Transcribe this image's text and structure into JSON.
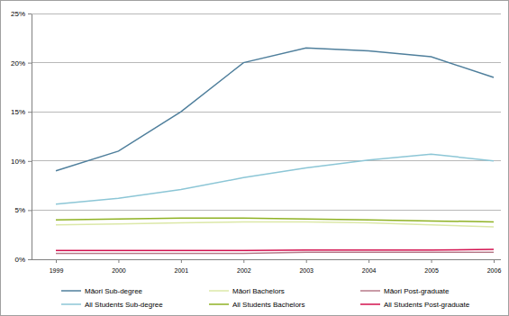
{
  "chart_data": {
    "type": "line",
    "categories": [
      "1999",
      "2000",
      "2001",
      "2002",
      "2003",
      "2004",
      "2005",
      "2006"
    ],
    "series": [
      {
        "name": "Māori Sub-degree",
        "color": "#4f7f9c",
        "values": [
          9.0,
          11.0,
          15.0,
          20.0,
          21.5,
          21.2,
          20.6,
          18.5
        ]
      },
      {
        "name": "Māori Bachelors",
        "color": "#dce8a8",
        "values": [
          3.5,
          3.6,
          3.7,
          3.8,
          3.8,
          3.7,
          3.5,
          3.3
        ]
      },
      {
        "name": "Māori Post-graduate",
        "color": "#b77a8a",
        "values": [
          0.6,
          0.6,
          0.6,
          0.6,
          0.7,
          0.7,
          0.7,
          0.7
        ]
      },
      {
        "name": "All Students Sub-degree",
        "color": "#8cc6d6",
        "values": [
          5.6,
          6.2,
          7.1,
          8.3,
          9.3,
          10.1,
          10.7,
          10.0
        ]
      },
      {
        "name": "All Students Bachelors",
        "color": "#8fb224",
        "values": [
          4.0,
          4.1,
          4.2,
          4.2,
          4.1,
          4.0,
          3.9,
          3.8
        ]
      },
      {
        "name": "All Students Post-graduate",
        "color": "#d3104e",
        "values": [
          0.9,
          0.9,
          0.9,
          0.9,
          0.95,
          0.95,
          0.95,
          1.0
        ]
      }
    ],
    "ylim": [
      0,
      25
    ],
    "yticks": [
      {
        "value": 0,
        "label": "0%"
      },
      {
        "value": 5,
        "label": "5%"
      },
      {
        "value": 10,
        "label": "10%"
      },
      {
        "value": 15,
        "label": "15%"
      },
      {
        "value": 20,
        "label": "20%"
      },
      {
        "value": 25,
        "label": "25%"
      }
    ],
    "grid": true,
    "legend": "bottom"
  }
}
